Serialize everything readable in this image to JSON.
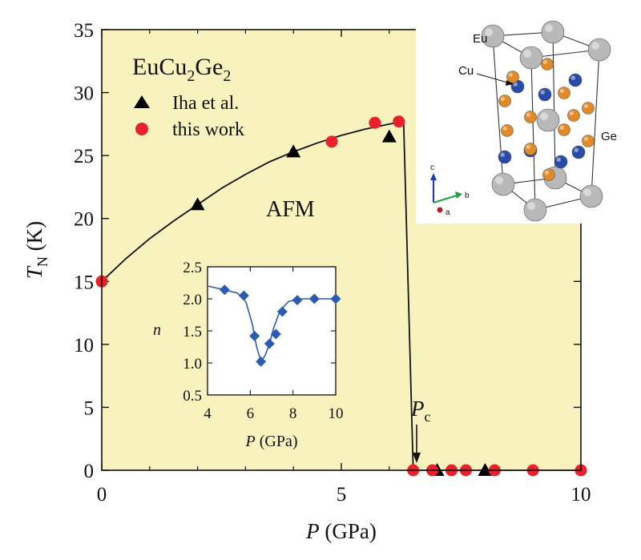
{
  "chart_data": [
    {
      "type": "scatter",
      "xlabel": "P (GPa)",
      "ylabel": "T_N (K)",
      "xlim": [
        0,
        10
      ],
      "ylim": [
        0,
        35
      ],
      "xticks": [
        "0",
        "5",
        "10"
      ],
      "yticks": [
        "0",
        "5",
        "10",
        "15",
        "20",
        "25",
        "30",
        "35"
      ],
      "background": "#f8f3be",
      "compound": {
        "base": "EuCu",
        "sub1": "2",
        "mid": "Ge",
        "sub2": "2"
      },
      "phase_label": "AFM",
      "pc_label": {
        "main": "P",
        "sub": "c"
      },
      "pc_value": 6.5,
      "series": [
        {
          "name": "Iha et al.",
          "marker": "triangle",
          "color": "#000000",
          "x": [
            2.0,
            4.0,
            6.0,
            7.0,
            8.0
          ],
          "y": [
            21.1,
            25.3,
            26.5,
            0,
            0
          ]
        },
        {
          "name": "this work",
          "marker": "circle",
          "color": "#e8212a",
          "x": [
            0.0,
            4.8,
            5.7,
            6.2,
            6.5,
            6.9,
            7.3,
            7.6,
            8.2,
            9.0,
            10.0
          ],
          "y": [
            15.0,
            26.1,
            27.6,
            27.7,
            0,
            0,
            0,
            0,
            0,
            0,
            0
          ]
        }
      ],
      "fit_line": {
        "x": [
          0,
          0.5,
          1.0,
          1.5,
          2.0,
          2.5,
          3.0,
          3.5,
          4.0,
          4.5,
          5.0,
          5.5,
          6.0,
          6.3,
          6.5
        ],
        "y": [
          15.0,
          16.8,
          18.4,
          19.8,
          21.1,
          22.4,
          23.5,
          24.5,
          25.3,
          26.0,
          26.6,
          27.1,
          27.5,
          27.7,
          0
        ]
      }
    },
    {
      "type": "line",
      "xlabel": "P (GPa)",
      "ylabel": "n",
      "xlim": [
        4,
        10
      ],
      "ylim": [
        0.5,
        2.5
      ],
      "xticks": [
        "4",
        "6",
        "8",
        "10"
      ],
      "yticks": [
        "0.5",
        "1.0",
        "1.5",
        "2.0",
        "2.5"
      ],
      "series": [
        {
          "marker": "diamond",
          "color": "#2a5db0",
          "x": [
            4.8,
            5.7,
            6.2,
            6.5,
            6.9,
            7.2,
            7.5,
            8.2,
            9.0,
            10.0
          ],
          "y": [
            2.14,
            2.05,
            1.42,
            1.02,
            1.3,
            1.45,
            1.8,
            1.98,
            2.0,
            2.0
          ]
        }
      ],
      "fit_line": {
        "x": [
          4.0,
          4.8,
          5.4,
          5.8,
          6.1,
          6.3,
          6.5,
          6.7,
          6.9,
          7.1,
          7.4,
          7.8,
          8.4,
          9.0,
          10.0
        ],
        "y": [
          2.2,
          2.14,
          2.09,
          1.95,
          1.6,
          1.25,
          1.02,
          1.12,
          1.3,
          1.55,
          1.82,
          1.96,
          2.0,
          2.0,
          2.0
        ]
      }
    }
  ],
  "crystal_labels": {
    "eu": "Eu",
    "cu": "Cu",
    "ge": "Ge"
  },
  "axis_triad": {
    "c": "c",
    "b": "b",
    "a": "a"
  },
  "colors": {
    "eu": "#b9b9b9",
    "cu": "#2a4aa8",
    "ge": "#e08a28"
  }
}
